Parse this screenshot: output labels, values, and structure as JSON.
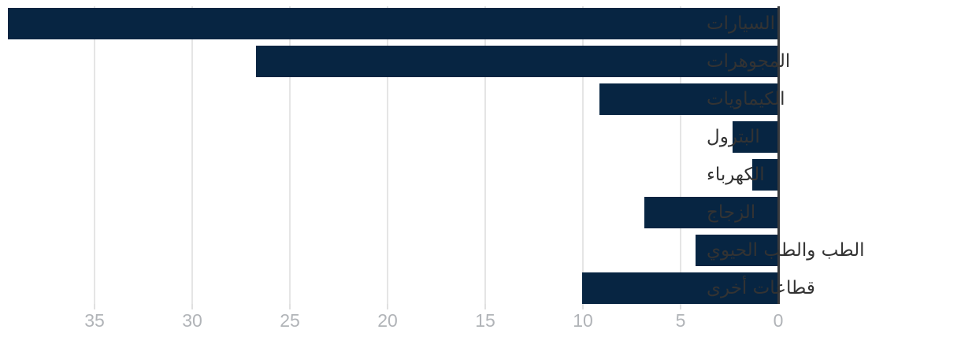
{
  "chart_data": {
    "type": "bar",
    "orientation": "horizontal",
    "direction": "rtl",
    "title": "",
    "xlabel": "",
    "ylabel": "",
    "categories": [
      "السيارات",
      "المجوهرات",
      "الكيماويات",
      "البترول",
      "الكهرباء",
      "الزجاج",
      "الطب والطب الحيوي",
      "قطاعات أخرى"
    ],
    "values": [
      39.4,
      26.7,
      9.1,
      2.3,
      1.3,
      6.8,
      4.2,
      10.0
    ],
    "x_ticks": [
      35,
      30,
      25,
      20,
      15,
      10,
      5,
      0
    ],
    "xlim": [
      0,
      39.8
    ],
    "grid": "vertical",
    "legend": "none",
    "colors": {
      "bar": "#072542",
      "gridline": "#e5e5e5",
      "axis_line": "#37393c",
      "tick_label": "#b1b4b8",
      "category_label": "#333333",
      "background": "#ffffff"
    }
  }
}
